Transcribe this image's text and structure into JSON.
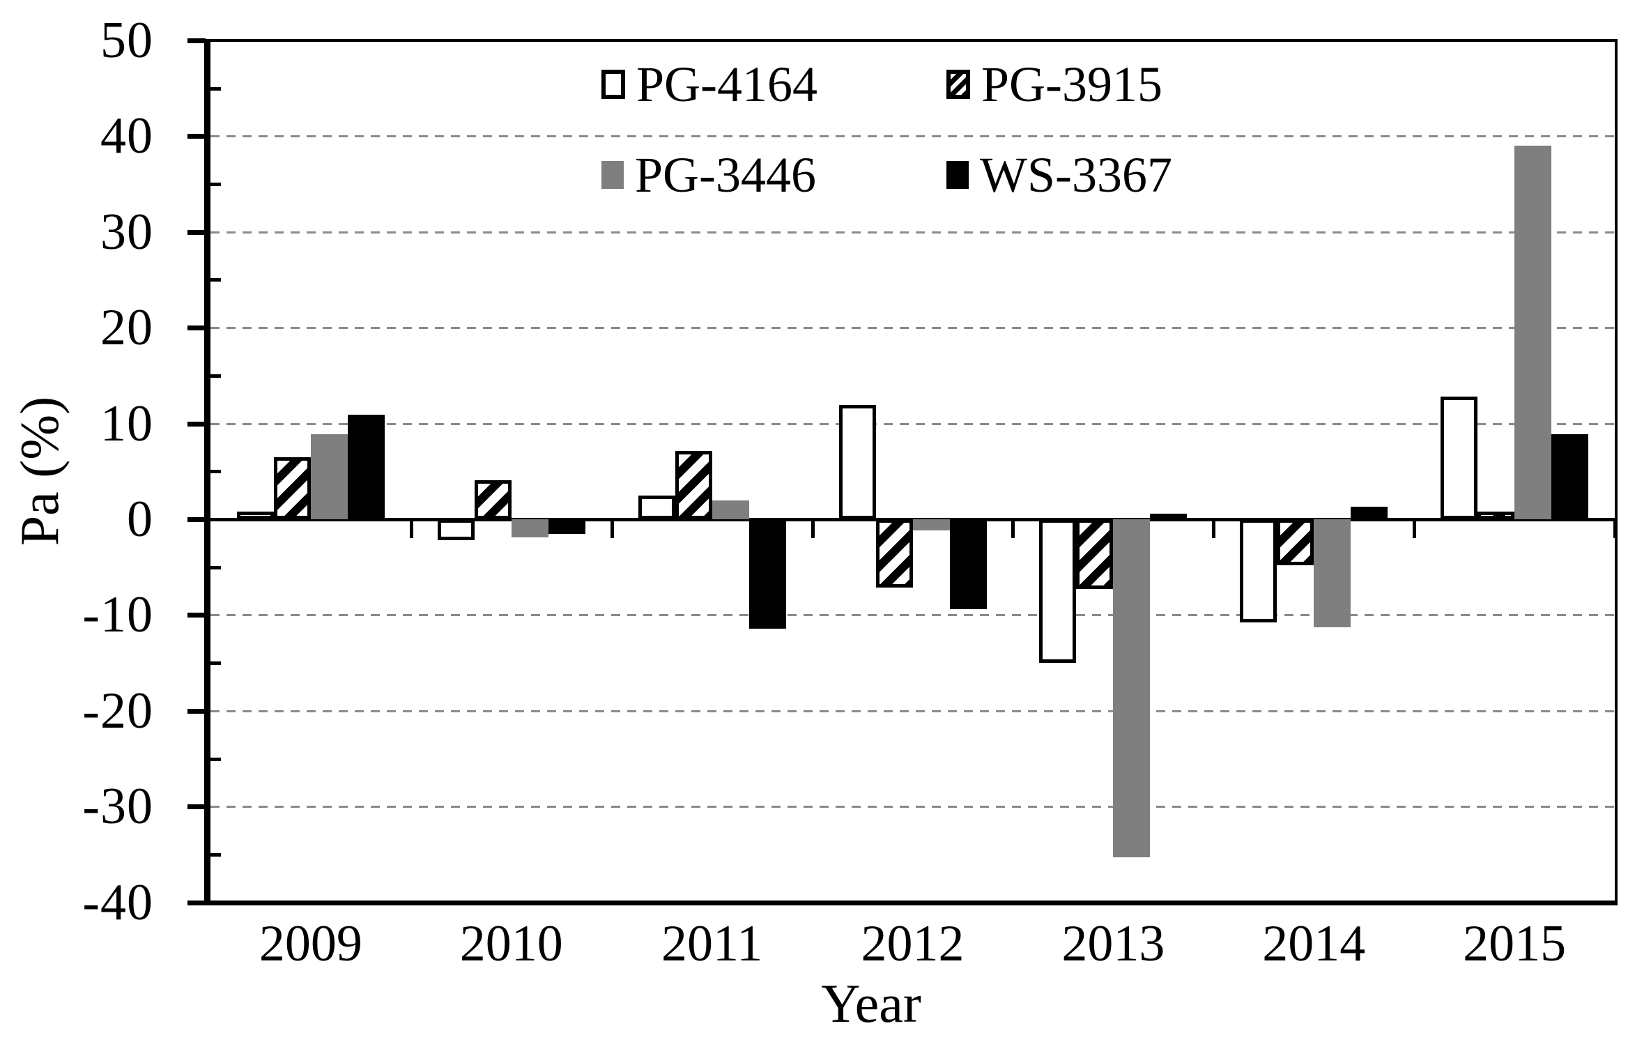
{
  "chart_data": {
    "type": "bar",
    "title": "",
    "xlabel": "Year",
    "ylabel": "Pa (%)",
    "ylim": [
      -40,
      50
    ],
    "yticks": [
      50,
      40,
      30,
      20,
      10,
      0,
      -10,
      -20,
      -30,
      -40
    ],
    "minor_ytick_step": 5,
    "grid": "horizontal dashed gray lines at every 10 units (none at 0, 50 or -40)",
    "legend_position": "inside plot, top center, 2 columns x 2 rows",
    "categories": [
      "2009",
      "2010",
      "2011",
      "2012",
      "2013",
      "2014",
      "2015"
    ],
    "series": [
      {
        "name": "PG-4164",
        "swatch": "white-outlined",
        "fill": "#ffffff",
        "border": "#000000",
        "values": [
          0.8,
          -2.2,
          2.5,
          11.9,
          -15.0,
          -10.8,
          12.8
        ]
      },
      {
        "name": "PG-3915",
        "swatch": "diagonal-hatch",
        "fill": "#ffffff",
        "border": "#000000",
        "values": [
          6.5,
          4.1,
          7.1,
          -7.1,
          -7.3,
          -4.8,
          0.8
        ]
      },
      {
        "name": "PG-3446",
        "swatch": "solid-gray",
        "fill": "#7f7f7f",
        "values": [
          8.9,
          -1.9,
          2.0,
          -1.2,
          -35.3,
          -11.3,
          39.0
        ]
      },
      {
        "name": "WS-3367",
        "swatch": "solid-black",
        "fill": "#000000",
        "values": [
          10.9,
          -1.5,
          -11.4,
          -9.4,
          0.6,
          1.3,
          8.9
        ]
      }
    ],
    "axis_color": "#000000",
    "gridline_color": "#8a8a8a"
  }
}
